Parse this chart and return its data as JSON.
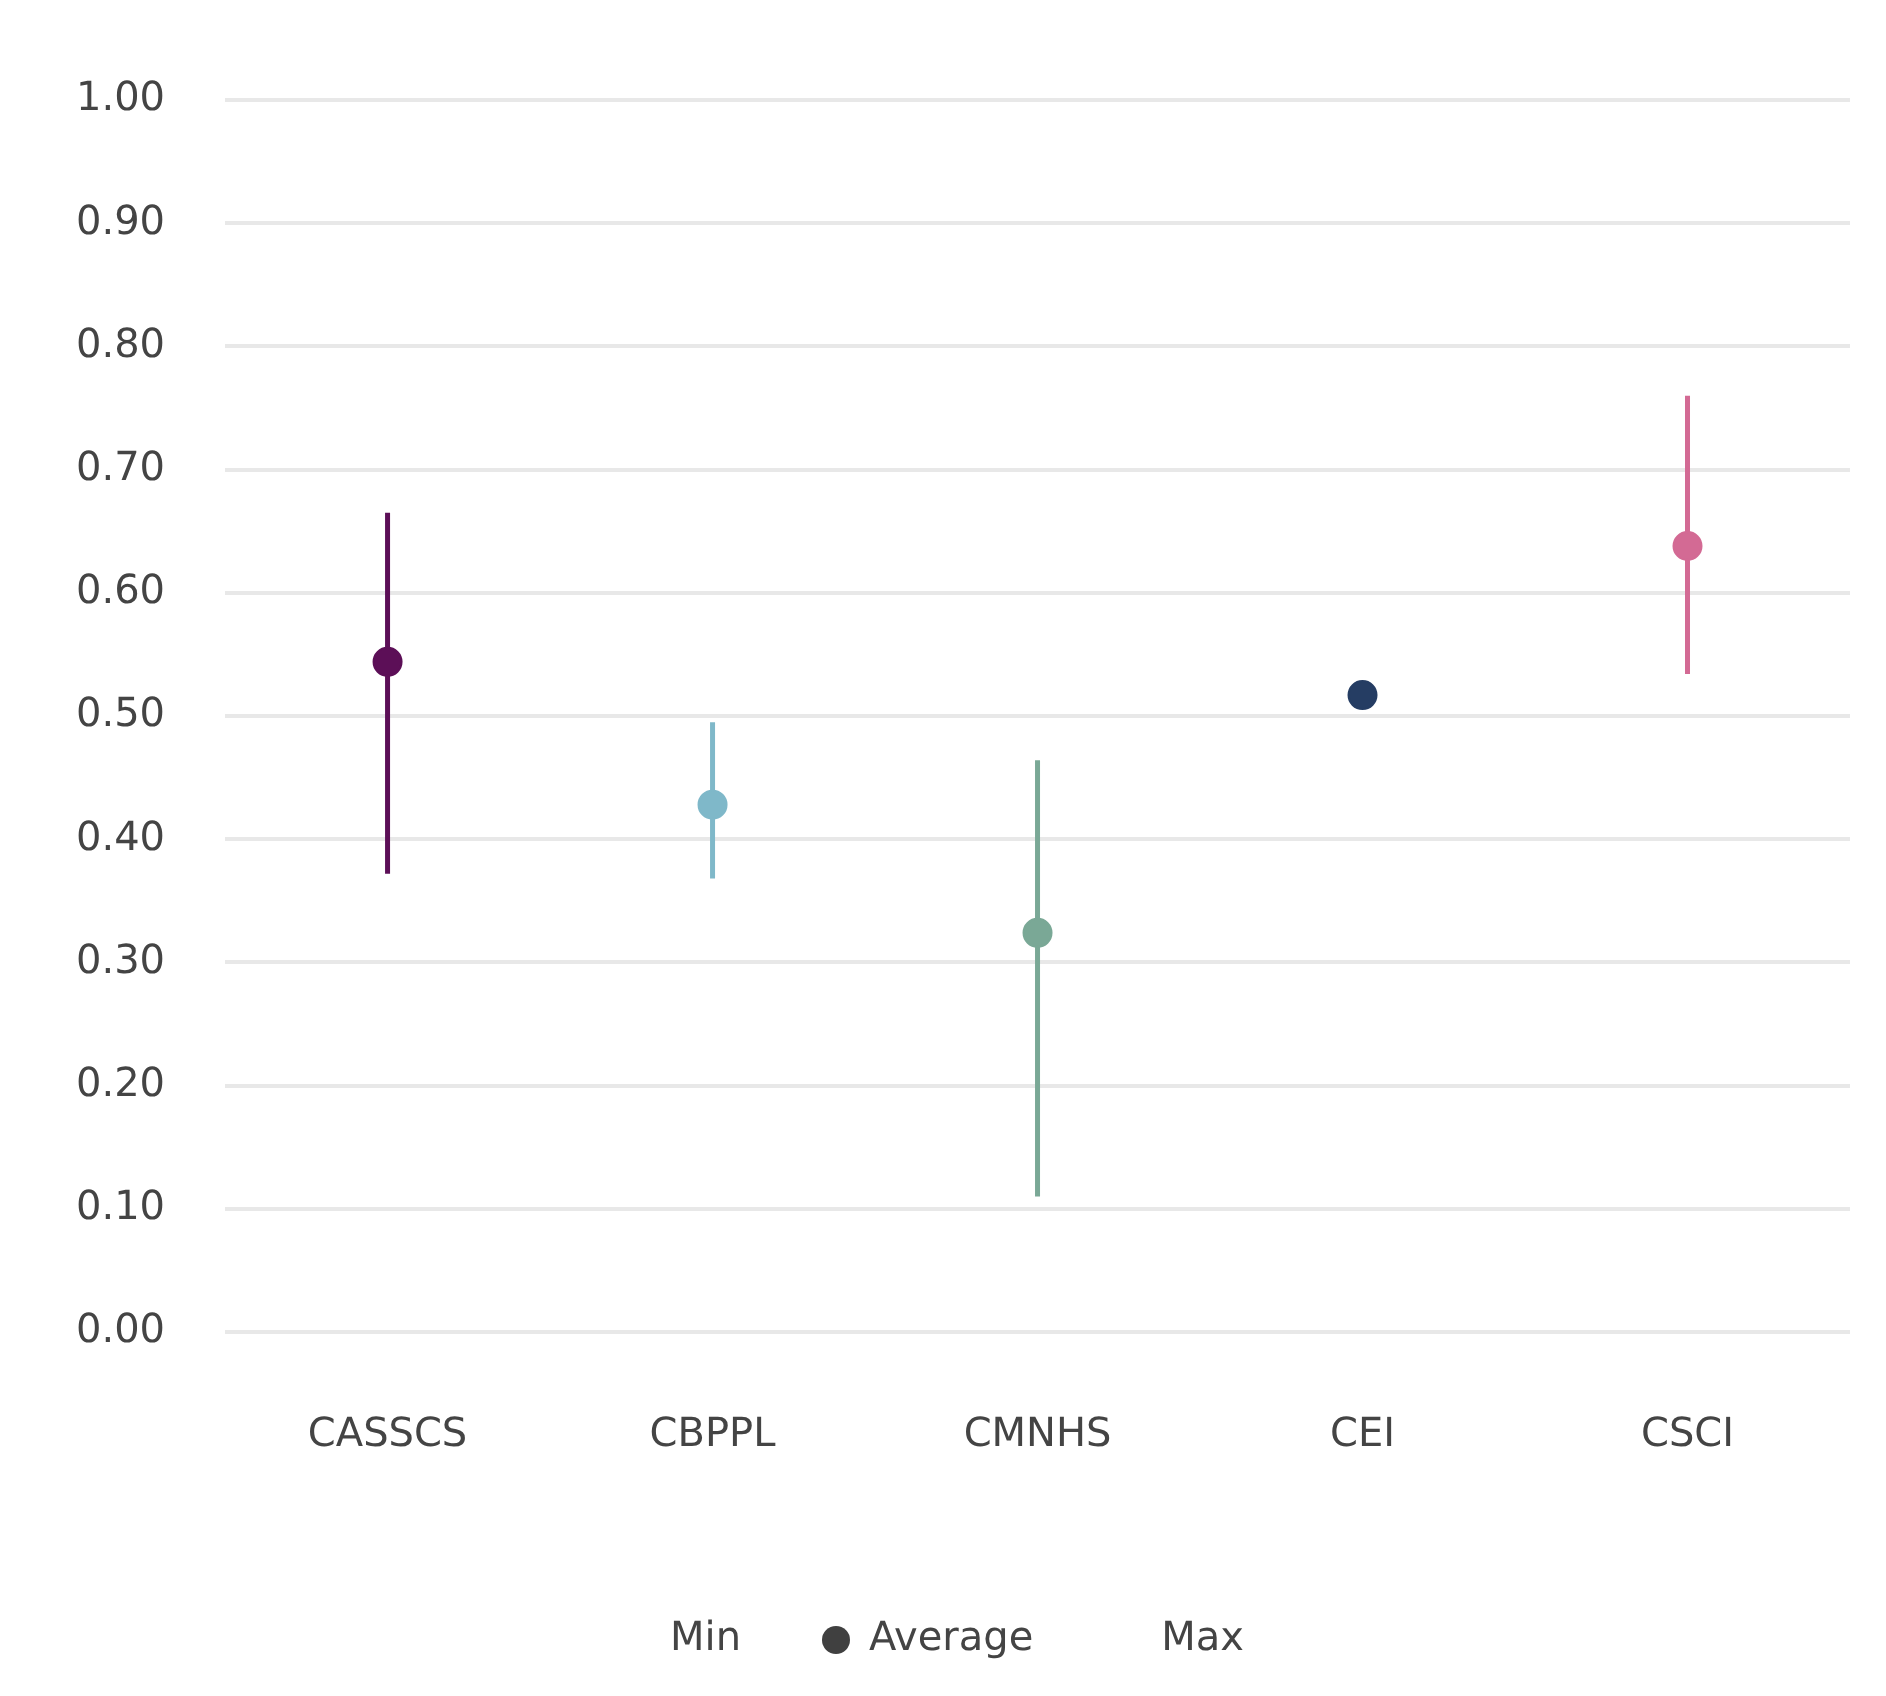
{
  "chart_data": {
    "type": "scatter",
    "categories": [
      "CASSCS",
      "CBPPL",
      "CMNHS",
      "CEI",
      "CSCI"
    ],
    "series": [
      {
        "name": "Average",
        "marker": "circle",
        "color": "#404040",
        "colors": [
          "#5c0f57",
          "#7fb8c9",
          "#7aa896",
          "#253d63",
          "#d36a94"
        ],
        "values": [
          0.544,
          0.428,
          0.324,
          0.517,
          0.638
        ],
        "errors": [
          [
            0.372,
            0.665
          ],
          [
            0.368,
            0.495
          ],
          [
            0.11,
            0.464
          ],
          null,
          [
            0.534,
            0.76
          ]
        ]
      }
    ],
    "annotations": [
      "Min",
      "Max"
    ],
    "ylim": [
      0,
      1
    ],
    "yticks": [
      {
        "value": 0,
        "label": "0.00"
      },
      {
        "value": 0.1,
        "label": "0.10"
      },
      {
        "value": 0.2,
        "label": "0.20"
      },
      {
        "value": 0.3,
        "label": "0.30"
      },
      {
        "value": 0.4,
        "label": "0.40"
      },
      {
        "value": 0.5,
        "label": "0.50"
      },
      {
        "value": 0.6,
        "label": "0.60"
      },
      {
        "value": 0.7,
        "label": "0.70"
      },
      {
        "value": 0.8,
        "label": "0.80"
      },
      {
        "value": 0.9,
        "label": "0.90"
      },
      {
        "value": 1,
        "label": "1.00"
      }
    ],
    "grid": "y",
    "legend": "bottom"
  }
}
